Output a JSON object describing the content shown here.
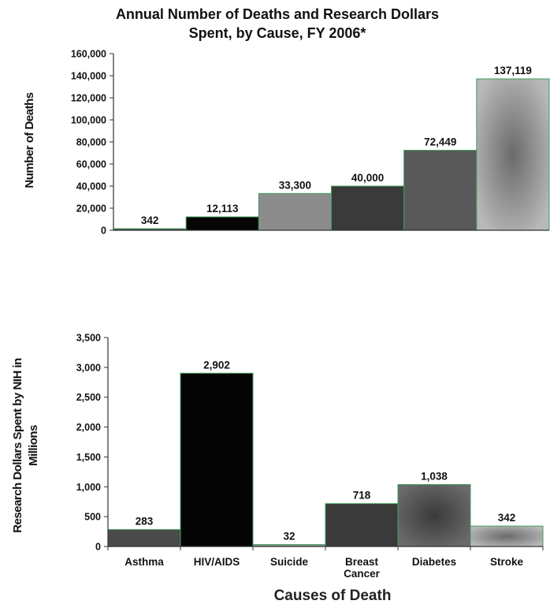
{
  "title_lines": [
    "Annual Number of Deaths and Research Dollars",
    "Spent, by Cause, FY 2006*"
  ],
  "colors": {
    "bar_outline": "#3f9e5c",
    "axis": "#333333",
    "text": "#111111"
  },
  "chart_data": [
    {
      "type": "bar",
      "categories": [
        "Asthma",
        "HIV/AIDS",
        "Suicide",
        "Breast Cancer",
        "Diabetes",
        "Stroke"
      ],
      "values": [
        342,
        12113,
        33300,
        40000,
        72449,
        137119
      ],
      "value_labels": [
        "342",
        "12,113",
        "33,300",
        "40,000",
        "72,449",
        "137,119"
      ],
      "ylabel": "Number of Deaths",
      "xlabel": "",
      "ylim": [
        0,
        160000
      ],
      "yticks": [
        0,
        20000,
        40000,
        60000,
        80000,
        100000,
        120000,
        140000,
        160000
      ],
      "ytick_labels": [
        "0",
        "20,000",
        "40,000",
        "60,000",
        "80,000",
        "100,000",
        "120,000",
        "140,000",
        "160,000"
      ],
      "grid": false,
      "bar_styles": [
        "#4a4a4a",
        "#050505",
        "#8c8c8c",
        "#3a3a3a",
        "#595959",
        "radial-gray"
      ]
    },
    {
      "type": "bar",
      "categories": [
        "Asthma",
        "HIV/AIDS",
        "Suicide",
        "Breast\nCancer",
        "Diabetes",
        "Stroke"
      ],
      "category_lines": [
        [
          "Asthma"
        ],
        [
          "HIV/AIDS"
        ],
        [
          "Suicide"
        ],
        [
          "Breast",
          "Cancer"
        ],
        [
          "Diabetes"
        ],
        [
          "Stroke"
        ]
      ],
      "values": [
        283,
        2902,
        32,
        718,
        1038,
        342
      ],
      "value_labels": [
        "283",
        "2,902",
        "32",
        "718",
        "1,038",
        "342"
      ],
      "ylabel_lines": [
        "Research Dollars Spent by NIH in",
        "Millions"
      ],
      "xlabel": "Causes of Death",
      "ylim": [
        0,
        3500
      ],
      "yticks": [
        0,
        500,
        1000,
        1500,
        2000,
        2500,
        3000,
        3500
      ],
      "ytick_labels": [
        "0",
        "500",
        "1,000",
        "1,500",
        "2,000",
        "2,500",
        "3,000",
        "3,500"
      ],
      "grid": false,
      "bar_styles": [
        "#4a4a4a",
        "#050505",
        "#8c8c8c",
        "#3a3a3a",
        "radial-dark",
        "radial-gray"
      ]
    }
  ]
}
